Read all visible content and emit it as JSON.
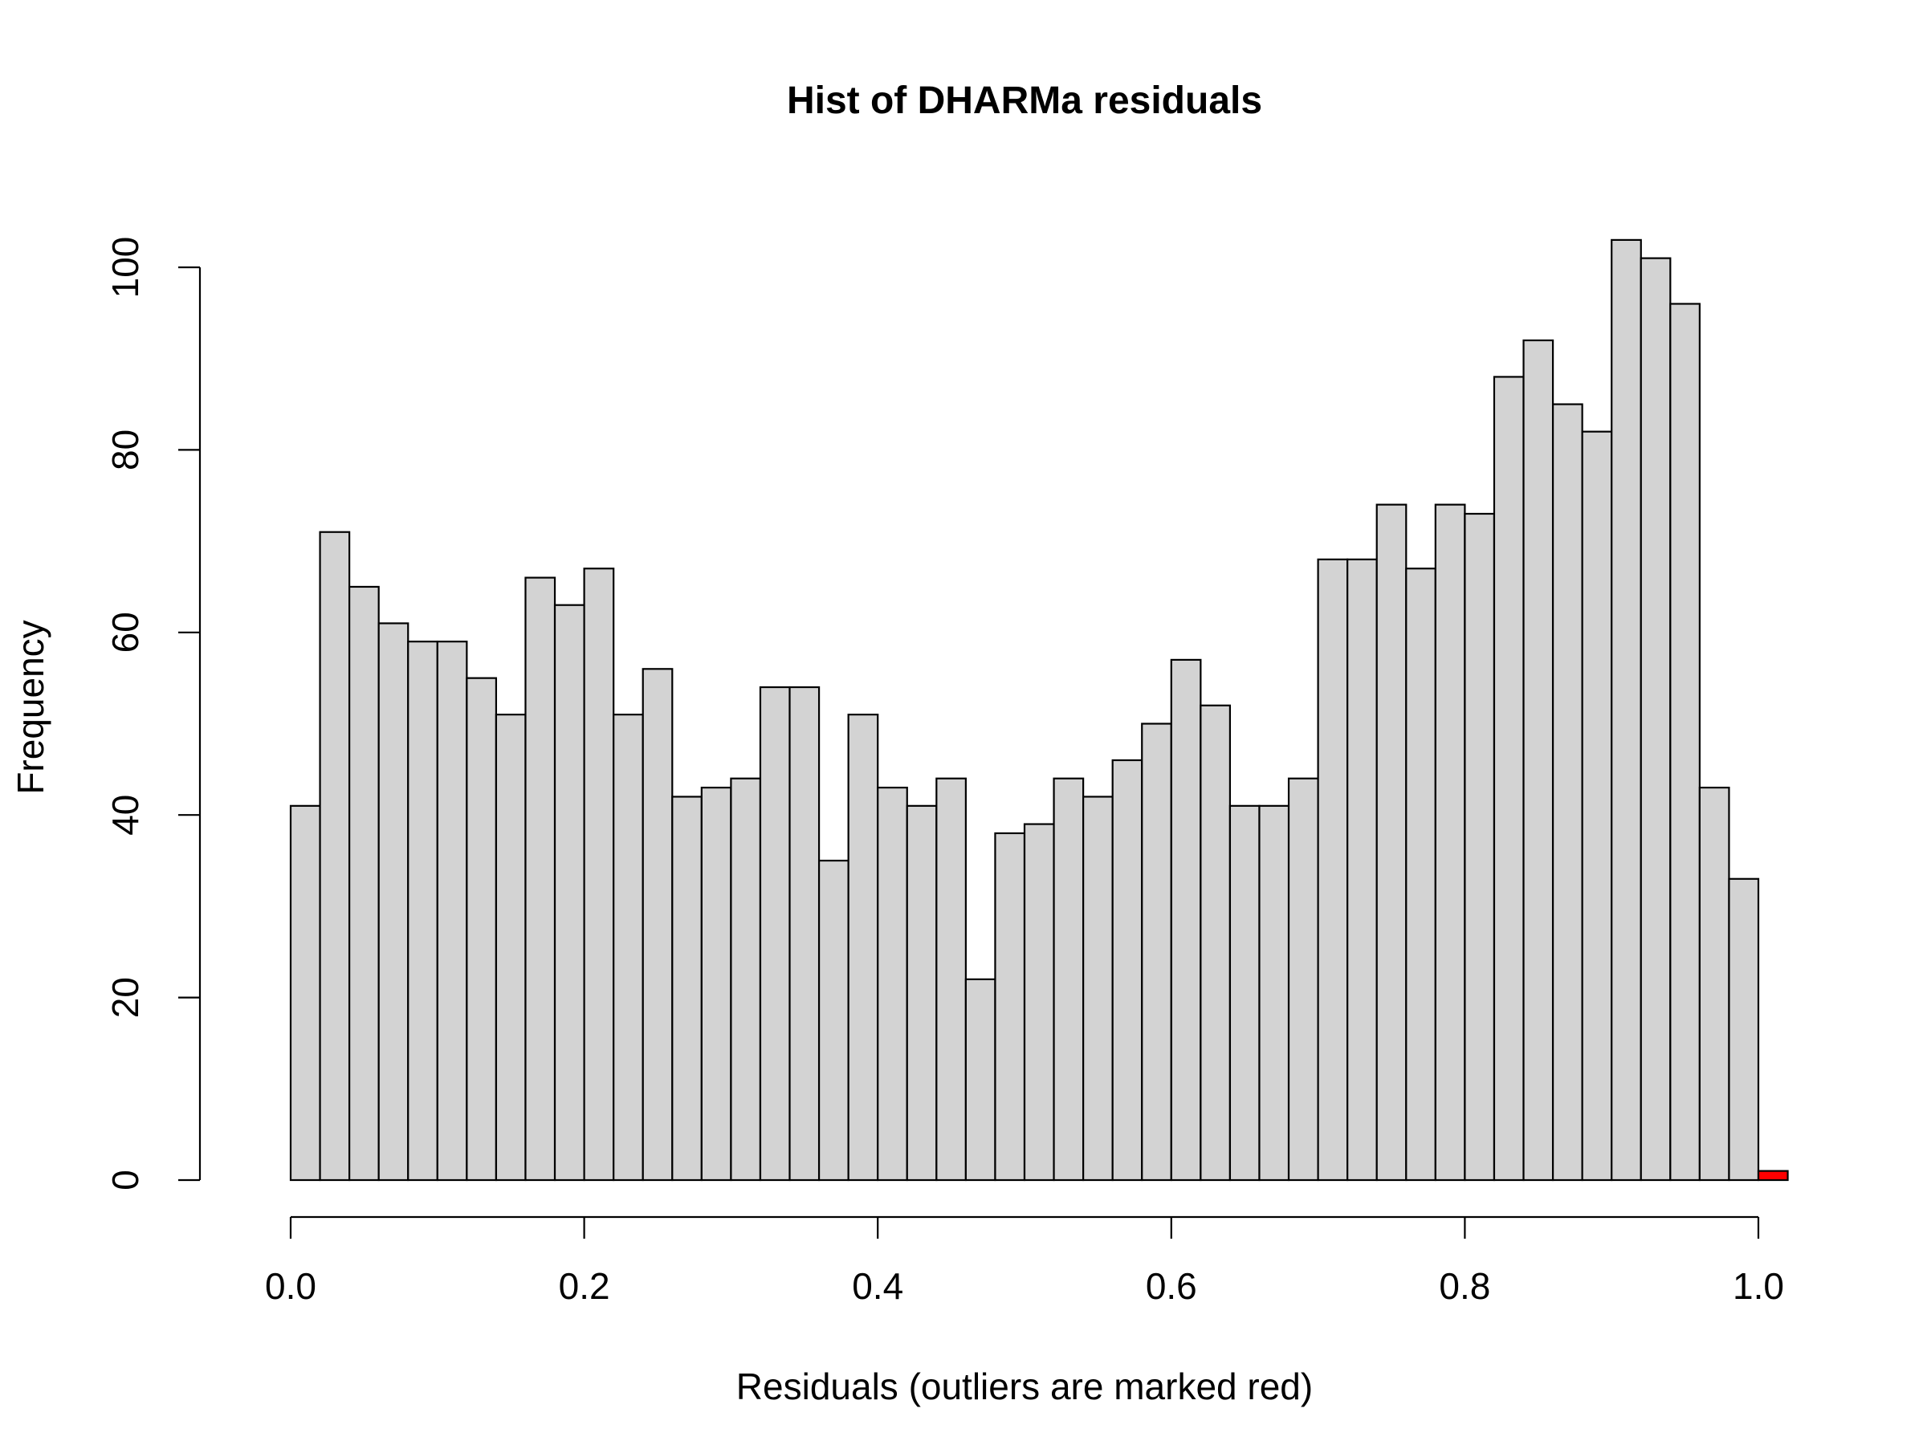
{
  "chart_data": {
    "type": "bar",
    "title": "Hist of DHARMa residuals",
    "xlabel": "Residuals (outliers are marked red)",
    "ylabel": "Frequency",
    "bin_width": 0.02,
    "bin_starts": [
      0.0,
      0.02,
      0.04,
      0.06,
      0.08,
      0.1,
      0.12,
      0.14,
      0.16,
      0.18,
      0.2,
      0.22,
      0.24,
      0.26,
      0.28,
      0.3,
      0.32,
      0.34,
      0.36,
      0.38,
      0.4,
      0.42,
      0.44,
      0.46,
      0.48,
      0.5,
      0.52,
      0.54,
      0.56,
      0.58,
      0.6,
      0.62,
      0.64,
      0.66,
      0.68,
      0.7,
      0.72,
      0.74,
      0.76,
      0.78,
      0.8,
      0.82,
      0.84,
      0.86,
      0.88,
      0.9,
      0.92,
      0.94,
      0.96,
      0.98,
      1.0
    ],
    "values": [
      41,
      71,
      65,
      61,
      59,
      59,
      55,
      51,
      66,
      63,
      67,
      51,
      56,
      42,
      43,
      44,
      54,
      54,
      35,
      51,
      43,
      41,
      44,
      22,
      38,
      39,
      44,
      42,
      46,
      50,
      57,
      52,
      41,
      41,
      44,
      68,
      68,
      74,
      67,
      74,
      73,
      88,
      92,
      85,
      82,
      103,
      101,
      96,
      43,
      33,
      1
    ],
    "outlier_bins": [
      50
    ],
    "xlim": [
      0.0,
      1.02
    ],
    "ylim": [
      0,
      105
    ],
    "x_ticks": [
      "0.0",
      "0.2",
      "0.4",
      "0.6",
      "0.8",
      "1.0"
    ],
    "y_ticks": [
      "0",
      "20",
      "40",
      "60",
      "80",
      "100"
    ],
    "grid": false,
    "colors": {
      "bar_fill": "#d3d3d3",
      "outlier_fill": "#ff0000",
      "stroke": "#000000"
    }
  }
}
